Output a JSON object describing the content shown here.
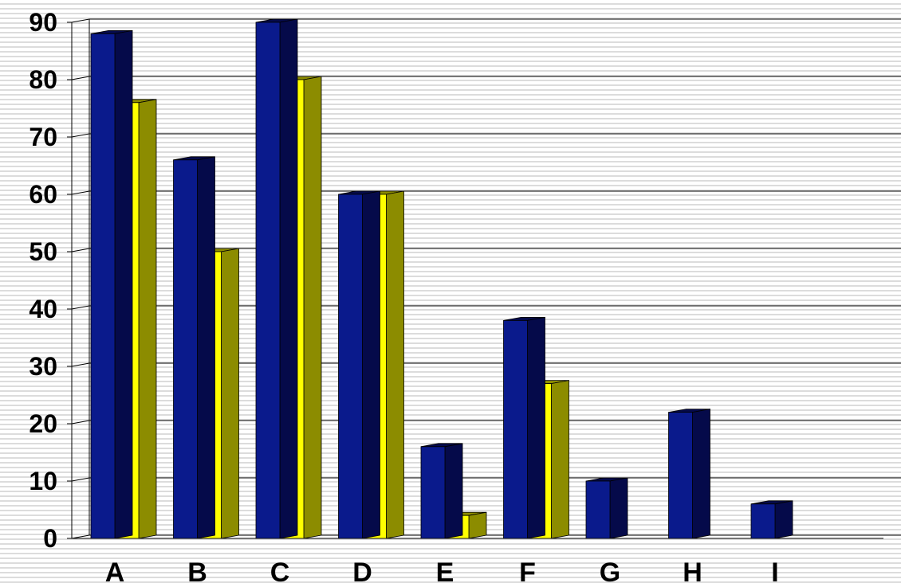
{
  "chart_data": {
    "type": "bar",
    "categories": [
      "A",
      "B",
      "C",
      "D",
      "E",
      "F",
      "G",
      "H",
      "I"
    ],
    "series": [
      {
        "values": [
          88,
          66,
          90,
          60,
          16,
          38,
          10,
          22,
          6
        ],
        "color": "#0a1a8c",
        "side_color": "#050a4a"
      },
      {
        "values": [
          76,
          50,
          80,
          60,
          4,
          27,
          null,
          null,
          null
        ],
        "color": "#ffff00",
        "side_color": "#8c8c00"
      }
    ],
    "ylim": [
      0,
      90
    ],
    "yticks": [
      "0",
      "10",
      "20",
      "30",
      "40",
      "50",
      "60",
      "70",
      "80",
      "90"
    ],
    "xlabel": "",
    "ylabel": "",
    "grid": true,
    "style": "3d-clustered-columns"
  }
}
